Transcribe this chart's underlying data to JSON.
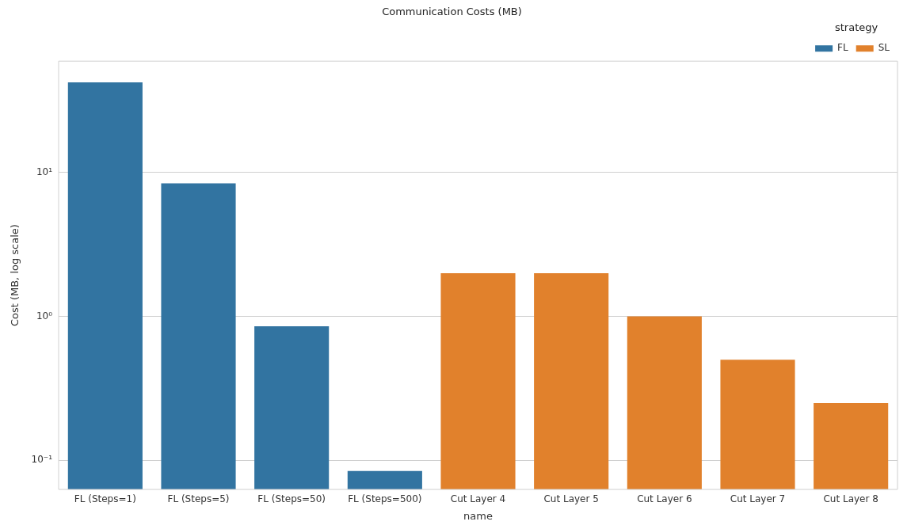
{
  "chart_data": {
    "type": "bar",
    "title": "Communication Costs (MB)",
    "xlabel": "name",
    "ylabel": "Cost (MB, log scale)",
    "legend_title": "strategy",
    "categories": [
      "FL (Steps=1)",
      "FL (Steps=5)",
      "FL (Steps=50)",
      "FL (Steps=500)",
      "Cut Layer 4",
      "Cut Layer 5",
      "Cut Layer 6",
      "Cut Layer 7",
      "Cut Layer 8"
    ],
    "series": [
      {
        "name": "FL",
        "color": "#3274a1",
        "values": [
          42.4,
          8.43,
          0.853,
          0.0843,
          null,
          null,
          null,
          null,
          null
        ]
      },
      {
        "name": "SL",
        "color": "#e1812c",
        "values": [
          null,
          null,
          null,
          null,
          2.0,
          2.0,
          1.0,
          0.5,
          0.25
        ]
      }
    ],
    "log": "y",
    "ylim": [
      0.0627,
      59.6
    ],
    "yticks": [
      {
        "value": 0.1,
        "label": "10⁻¹"
      },
      {
        "value": 1,
        "label": "10⁰"
      },
      {
        "value": 10,
        "label": "10¹"
      }
    ],
    "grid": "y",
    "legend": "top right"
  }
}
